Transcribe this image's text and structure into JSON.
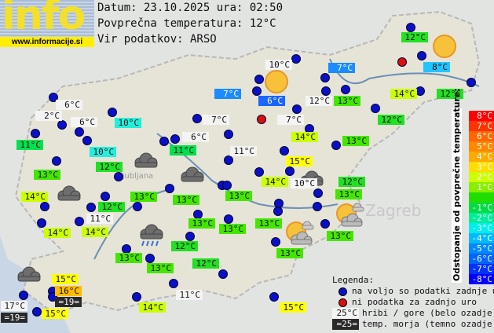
{
  "header": {
    "logo_text": "info",
    "logo_url": "www.informacije.si",
    "date_line": "Datum: 23.10.2025 ura: 02:50",
    "avg_line": "Povprečna temperatura: 12°C",
    "source_line": "Vir podatkov: ARSO"
  },
  "colors": {
    "station": "#0b10c8",
    "no_data": "#d81010",
    "mountain": "#f4f4f4",
    "sea": "#2a2a2a"
  },
  "labels": [
    {
      "text": "12°C",
      "bg": "#22e022"
    },
    {
      "text": "10°C",
      "bg": "#f4f4f4"
    },
    {
      "text": "7°C",
      "bg": "#1a8cff"
    },
    {
      "text": "8°C",
      "bg": "#22c4ff"
    },
    {
      "text": "7°C",
      "bg": "#1a8cff"
    },
    {
      "text": "6°C",
      "bg": "#1a66ff"
    },
    {
      "text": "12°C",
      "bg": "#f4f4f4"
    },
    {
      "text": "13°C",
      "bg": "#44e600"
    },
    {
      "text": "14°C",
      "bg": "#ccff00"
    },
    {
      "text": "12°C",
      "bg": "#22e022"
    },
    {
      "text": "12°C",
      "bg": "#22e022"
    },
    {
      "text": "6°C",
      "bg": "#f4f4f4"
    },
    {
      "text": "2°C",
      "bg": "#f4f4f4"
    },
    {
      "text": "6°C",
      "bg": "#f4f4f4"
    },
    {
      "text": "10°C",
      "bg": "#22eedd"
    },
    {
      "text": "7°C",
      "bg": "#f4f4f4"
    },
    {
      "text": "7°C",
      "bg": "#f4f4f4"
    },
    {
      "text": "14°C",
      "bg": "#ccff00"
    },
    {
      "text": "13°C",
      "bg": "#44e600"
    },
    {
      "text": "11°C",
      "bg": "#00e050"
    },
    {
      "text": "10°C",
      "bg": "#22eedd"
    },
    {
      "text": "6°C",
      "bg": "#f4f4f4"
    },
    {
      "text": "11°C",
      "bg": "#00e050"
    },
    {
      "text": "11°C",
      "bg": "#f4f4f4"
    },
    {
      "text": "15°C",
      "bg": "#ffff00"
    },
    {
      "text": "12°C",
      "bg": "#22e022"
    },
    {
      "text": "13°C",
      "bg": "#44e600"
    },
    {
      "text": "14°C",
      "bg": "#ccff00"
    },
    {
      "text": "10°C",
      "bg": "#f4f4f4"
    },
    {
      "text": "12°C",
      "bg": "#22e022"
    },
    {
      "text": "13°C",
      "bg": "#44e600"
    },
    {
      "text": "13°C",
      "bg": "#44e600"
    },
    {
      "text": "13°C",
      "bg": "#44e600"
    },
    {
      "text": "13°C",
      "bg": "#44e600"
    },
    {
      "text": "14°C",
      "bg": "#ccff00"
    },
    {
      "text": "12°C",
      "bg": "#22e022"
    },
    {
      "text": "11°C",
      "bg": "#f4f4f4"
    },
    {
      "text": "14°C",
      "bg": "#ccff00"
    },
    {
      "text": "14°C",
      "bg": "#ccff00"
    },
    {
      "text": "13°C",
      "bg": "#44e600"
    },
    {
      "text": "13°C",
      "bg": "#44e600"
    },
    {
      "text": "13°C",
      "bg": "#44e600"
    },
    {
      "text": "13°C",
      "bg": "#44e600"
    },
    {
      "text": "13°C",
      "bg": "#44e600"
    },
    {
      "text": "12°C",
      "bg": "#22e022"
    },
    {
      "text": "13°C",
      "bg": "#44e600"
    },
    {
      "text": "13°C",
      "bg": "#44e600"
    },
    {
      "text": "12°C",
      "bg": "#22e022"
    },
    {
      "text": "11°C",
      "bg": "#f4f4f4"
    },
    {
      "text": "14°C",
      "bg": "#ccff00"
    },
    {
      "text": "15°C",
      "bg": "#ffff00"
    },
    {
      "text": "15°C",
      "bg": "#ffff00"
    },
    {
      "text": "16°C",
      "bg": "#ffbb00"
    },
    {
      "text": "=19=",
      "bg": "#2a2a2a"
    },
    {
      "text": "17°C",
      "bg": "#f4f4f4"
    },
    {
      "text": "=19=",
      "bg": "#2a2a2a"
    },
    {
      "text": "15°C",
      "bg": "#ffff00"
    }
  ],
  "scale": {
    "title": "Odstopanje od povprečne temperature:",
    "bands": [
      {
        "text": "8°C",
        "color": "#ff0000"
      },
      {
        "text": "7°C",
        "color": "#ff3300"
      },
      {
        "text": "6°C",
        "color": "#ff6600"
      },
      {
        "text": "5°C",
        "color": "#ff8800"
      },
      {
        "text": "4°C",
        "color": "#ffaa00"
      },
      {
        "text": "3°C",
        "color": "#ffdd00"
      },
      {
        "text": "2°C",
        "color": "#ccff00"
      },
      {
        "text": "1°C",
        "color": "#88ee00"
      },
      {
        "text": "",
        "color": "#22dd00"
      },
      {
        "text": "-1°C",
        "color": "#00dd44"
      },
      {
        "text": "-2°C",
        "color": "#00ee99"
      },
      {
        "text": "-3°C",
        "color": "#00eeee"
      },
      {
        "text": "-4°C",
        "color": "#00bbff"
      },
      {
        "text": "-5°C",
        "color": "#0088ff"
      },
      {
        "text": "-6°C",
        "color": "#0066ff"
      },
      {
        "text": "-7°C",
        "color": "#0033ff"
      },
      {
        "text": "-8°C",
        "color": "#0000ff"
      }
    ]
  },
  "legend": {
    "title": "Legenda:",
    "available": "na voljo so podatki zadnje ure",
    "no_data": "ni podatka za zadnjo uro",
    "mountain_sample": "25°C",
    "mountain": "hribi / gore (belo ozadje)",
    "sea_sample": "=25=",
    "sea": "temp. morja (temno ozadje)"
  },
  "weather_icons": [
    "sun",
    "sun",
    "cloud",
    "cloud",
    "cloud",
    "cloud",
    "rain",
    "cloud",
    "sun-cloud",
    "sun-cloud"
  ]
}
